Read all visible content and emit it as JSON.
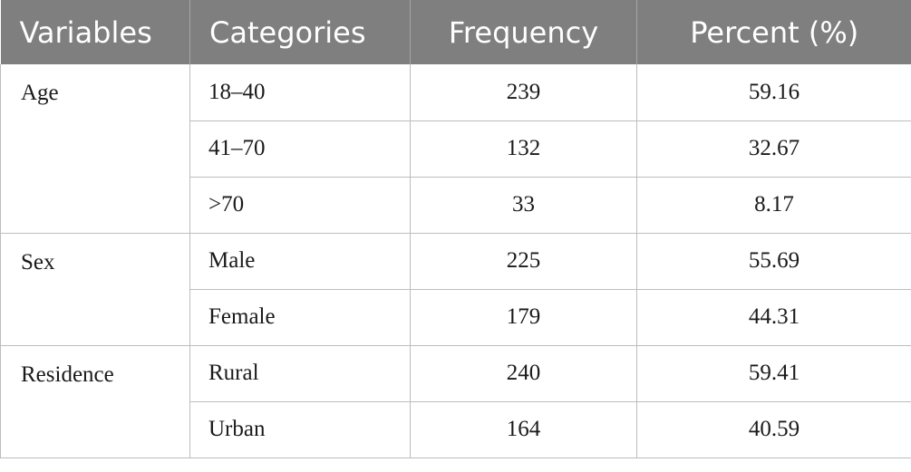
{
  "header": {
    "variables": "Variables",
    "categories": "Categories",
    "frequency": "Frequency",
    "percent": "Percent (%)"
  },
  "groups": [
    {
      "variable": "Age",
      "rows": [
        {
          "category": "18–40",
          "frequency": "239",
          "percent": "59.16"
        },
        {
          "category": "41–70",
          "frequency": "132",
          "percent": "32.67"
        },
        {
          "category": ">70",
          "frequency": "33",
          "percent": "8.17"
        }
      ]
    },
    {
      "variable": "Sex",
      "rows": [
        {
          "category": "Male",
          "frequency": "225",
          "percent": "55.69"
        },
        {
          "category": "Female",
          "frequency": "179",
          "percent": "44.31"
        }
      ]
    },
    {
      "variable": "Residence",
      "rows": [
        {
          "category": "Rural",
          "frequency": "240",
          "percent": "59.41"
        },
        {
          "category": "Urban",
          "frequency": "164",
          "percent": "40.59"
        }
      ]
    }
  ],
  "colors": {
    "header_background": "#7f7f7f",
    "header_text": "#ffffff",
    "grid_line": "#bdbdbd"
  }
}
